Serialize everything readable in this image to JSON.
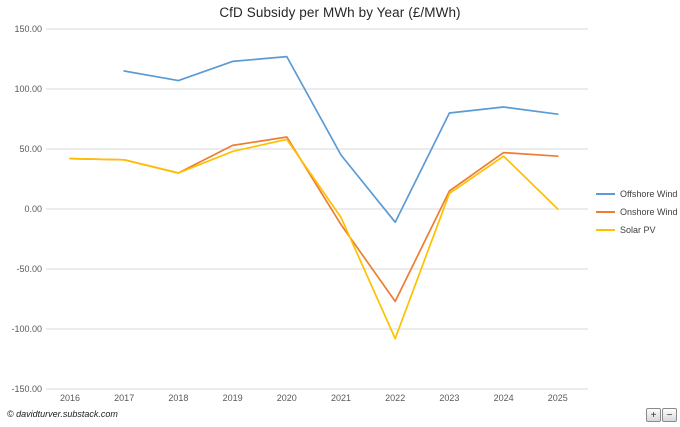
{
  "title": "CfD Subsidy per MWh by Year (£/MWh)",
  "footer": {
    "credit": "© davidturver.substack.com"
  },
  "zoom_controls": {
    "zoom_in": "+",
    "zoom_out": "−"
  },
  "chart_data": {
    "type": "line",
    "title": "CfD Subsidy per MWh by Year (£/MWh)",
    "x": [
      2016,
      2017,
      2018,
      2019,
      2020,
      2021,
      2022,
      2023,
      2024,
      2025
    ],
    "series": [
      {
        "name": "Offshore Wind",
        "color": "#5B9BD5",
        "values": [
          null,
          115,
          107,
          123,
          127,
          45,
          -11,
          80,
          85,
          79
        ]
      },
      {
        "name": "Onshore Wind",
        "color": "#ED7D31",
        "values": [
          42,
          41,
          30,
          53,
          60,
          -13,
          -77,
          15,
          47,
          44
        ]
      },
      {
        "name": "Solar PV",
        "color": "#FFC000",
        "values": [
          42,
          41,
          30,
          48,
          58,
          -7,
          -108,
          13,
          44,
          0
        ]
      }
    ],
    "ylim": [
      -150,
      150
    ],
    "ytick_step": 50,
    "ytick_labels": [
      "150.00",
      "100.00",
      "50.00",
      "0.00",
      "-50.00",
      "-100.00",
      "-150.00"
    ],
    "grid": true,
    "gridline_color": "#D9D9D9",
    "legend_position": "right"
  }
}
